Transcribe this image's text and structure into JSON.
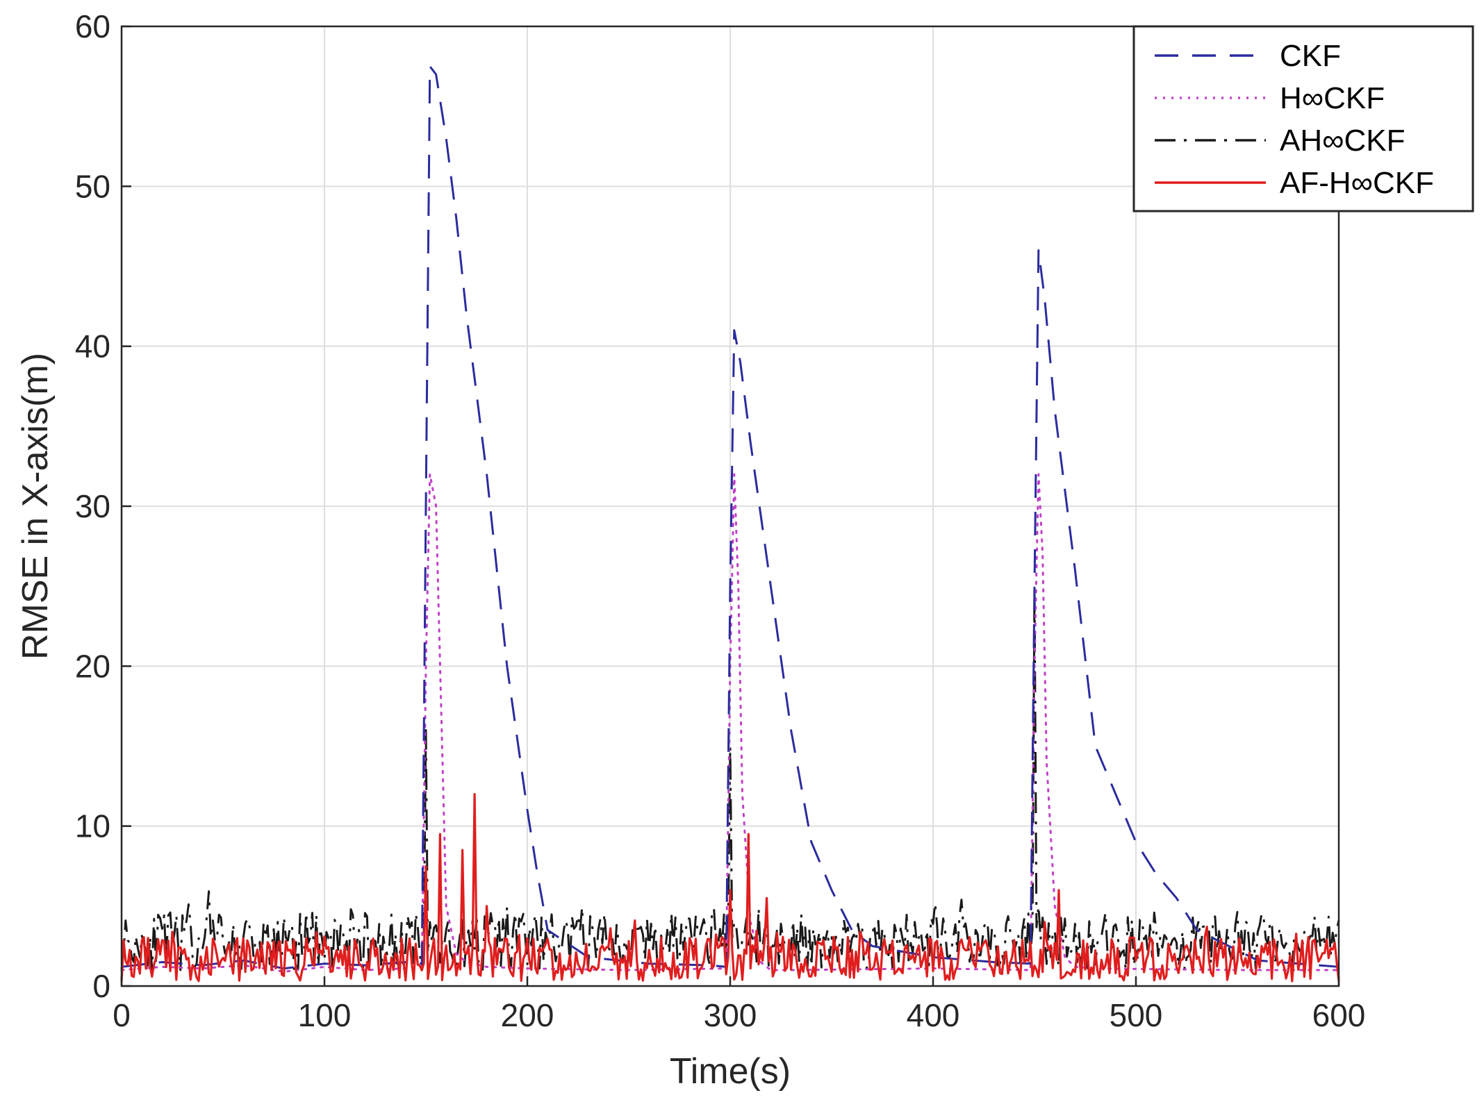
{
  "chart_data": {
    "type": "line",
    "title": "",
    "xlabel": "Time(s)",
    "ylabel": "RMSE in X-axis(m)",
    "xlim": [
      0,
      600
    ],
    "ylim": [
      0,
      60
    ],
    "xticks": [
      0,
      100,
      200,
      300,
      400,
      500,
      600
    ],
    "yticks": [
      0,
      10,
      20,
      30,
      40,
      50,
      60
    ],
    "xtick_labels": [
      "0",
      "100",
      "200",
      "300",
      "400",
      "500",
      "600"
    ],
    "ytick_labels": [
      "0",
      "10",
      "20",
      "30",
      "40",
      "50",
      "60"
    ],
    "grid": true,
    "legend_position": "top-right",
    "series": [
      {
        "name": "CKF",
        "color": "#2b2b9e",
        "dash": "dashed",
        "x": [
          0,
          20,
          40,
          60,
          80,
          100,
          120,
          140,
          148,
          150,
          152,
          155,
          160,
          165,
          170,
          180,
          190,
          200,
          205,
          210,
          230,
          260,
          290,
          298,
          300,
          302,
          305,
          310,
          320,
          330,
          340,
          350,
          360,
          370,
          400,
          430,
          448,
          450,
          452,
          455,
          460,
          470,
          480,
          490,
          500,
          510,
          520,
          530,
          560,
          600
        ],
        "y": [
          1.2,
          1.5,
          1.3,
          1.6,
          1.1,
          1.4,
          1.3,
          1.5,
          1.4,
          30,
          57.5,
          57,
          53,
          48,
          42,
          32,
          20,
          11,
          7,
          3.5,
          1.8,
          1.4,
          1.3,
          1.2,
          25,
          41,
          39,
          34,
          25,
          16,
          9,
          6,
          3.5,
          2.5,
          1.8,
          1.5,
          1.4,
          25,
          46,
          43,
          36,
          26,
          15,
          12,
          9,
          7,
          5.5,
          3.5,
          1.6,
          1.2
        ]
      },
      {
        "name": "H∞CKF",
        "color": "#c040c8",
        "dash": "dotted",
        "x": [
          0,
          20,
          40,
          60,
          80,
          100,
          120,
          140,
          148,
          150,
          152,
          155,
          158,
          160,
          165,
          170,
          180,
          200,
          250,
          298,
          300,
          302,
          304,
          306,
          310,
          315,
          320,
          330,
          400,
          448,
          450,
          452,
          454,
          456,
          460,
          465,
          470,
          480,
          550,
          600
        ],
        "y": [
          1.0,
          1.2,
          1.1,
          1.3,
          0.9,
          1.2,
          1.0,
          1.1,
          1.2,
          20,
          32,
          30,
          15,
          5,
          2,
          1.5,
          1.2,
          1.1,
          1.0,
          1.1,
          20,
          32,
          25,
          12,
          4,
          1.5,
          1.0,
          1.0,
          1.1,
          1.0,
          20,
          32,
          27,
          14,
          5,
          1.8,
          1.2,
          1.1,
          1.0,
          1.0
        ]
      },
      {
        "name": "AH∞CKF",
        "color": "#1a1a1a",
        "dash": "dashdot",
        "noise": {
          "base": 2.8,
          "amplitude": 1.8,
          "seed": 11
        },
        "spikes": [
          [
            148,
            1
          ],
          [
            150,
            16
          ],
          [
            152,
            4
          ],
          [
            298,
            2
          ],
          [
            300,
            15
          ],
          [
            302,
            4
          ],
          [
            448,
            2
          ],
          [
            450,
            25
          ],
          [
            452,
            5
          ]
        ]
      },
      {
        "name": "AF-H∞CKF",
        "color": "#e01e1e",
        "dash": "solid",
        "noise": {
          "base": 1.7,
          "amplitude": 1.4,
          "seed": 29
        },
        "spikes": [
          [
            150,
            7.5
          ],
          [
            157,
            9.5
          ],
          [
            168,
            8.5
          ],
          [
            174,
            12
          ],
          [
            180,
            5
          ],
          [
            300,
            6
          ],
          [
            309,
            9.5
          ],
          [
            318,
            5.5
          ],
          [
            455,
            4
          ],
          [
            462,
            6
          ]
        ]
      }
    ]
  }
}
